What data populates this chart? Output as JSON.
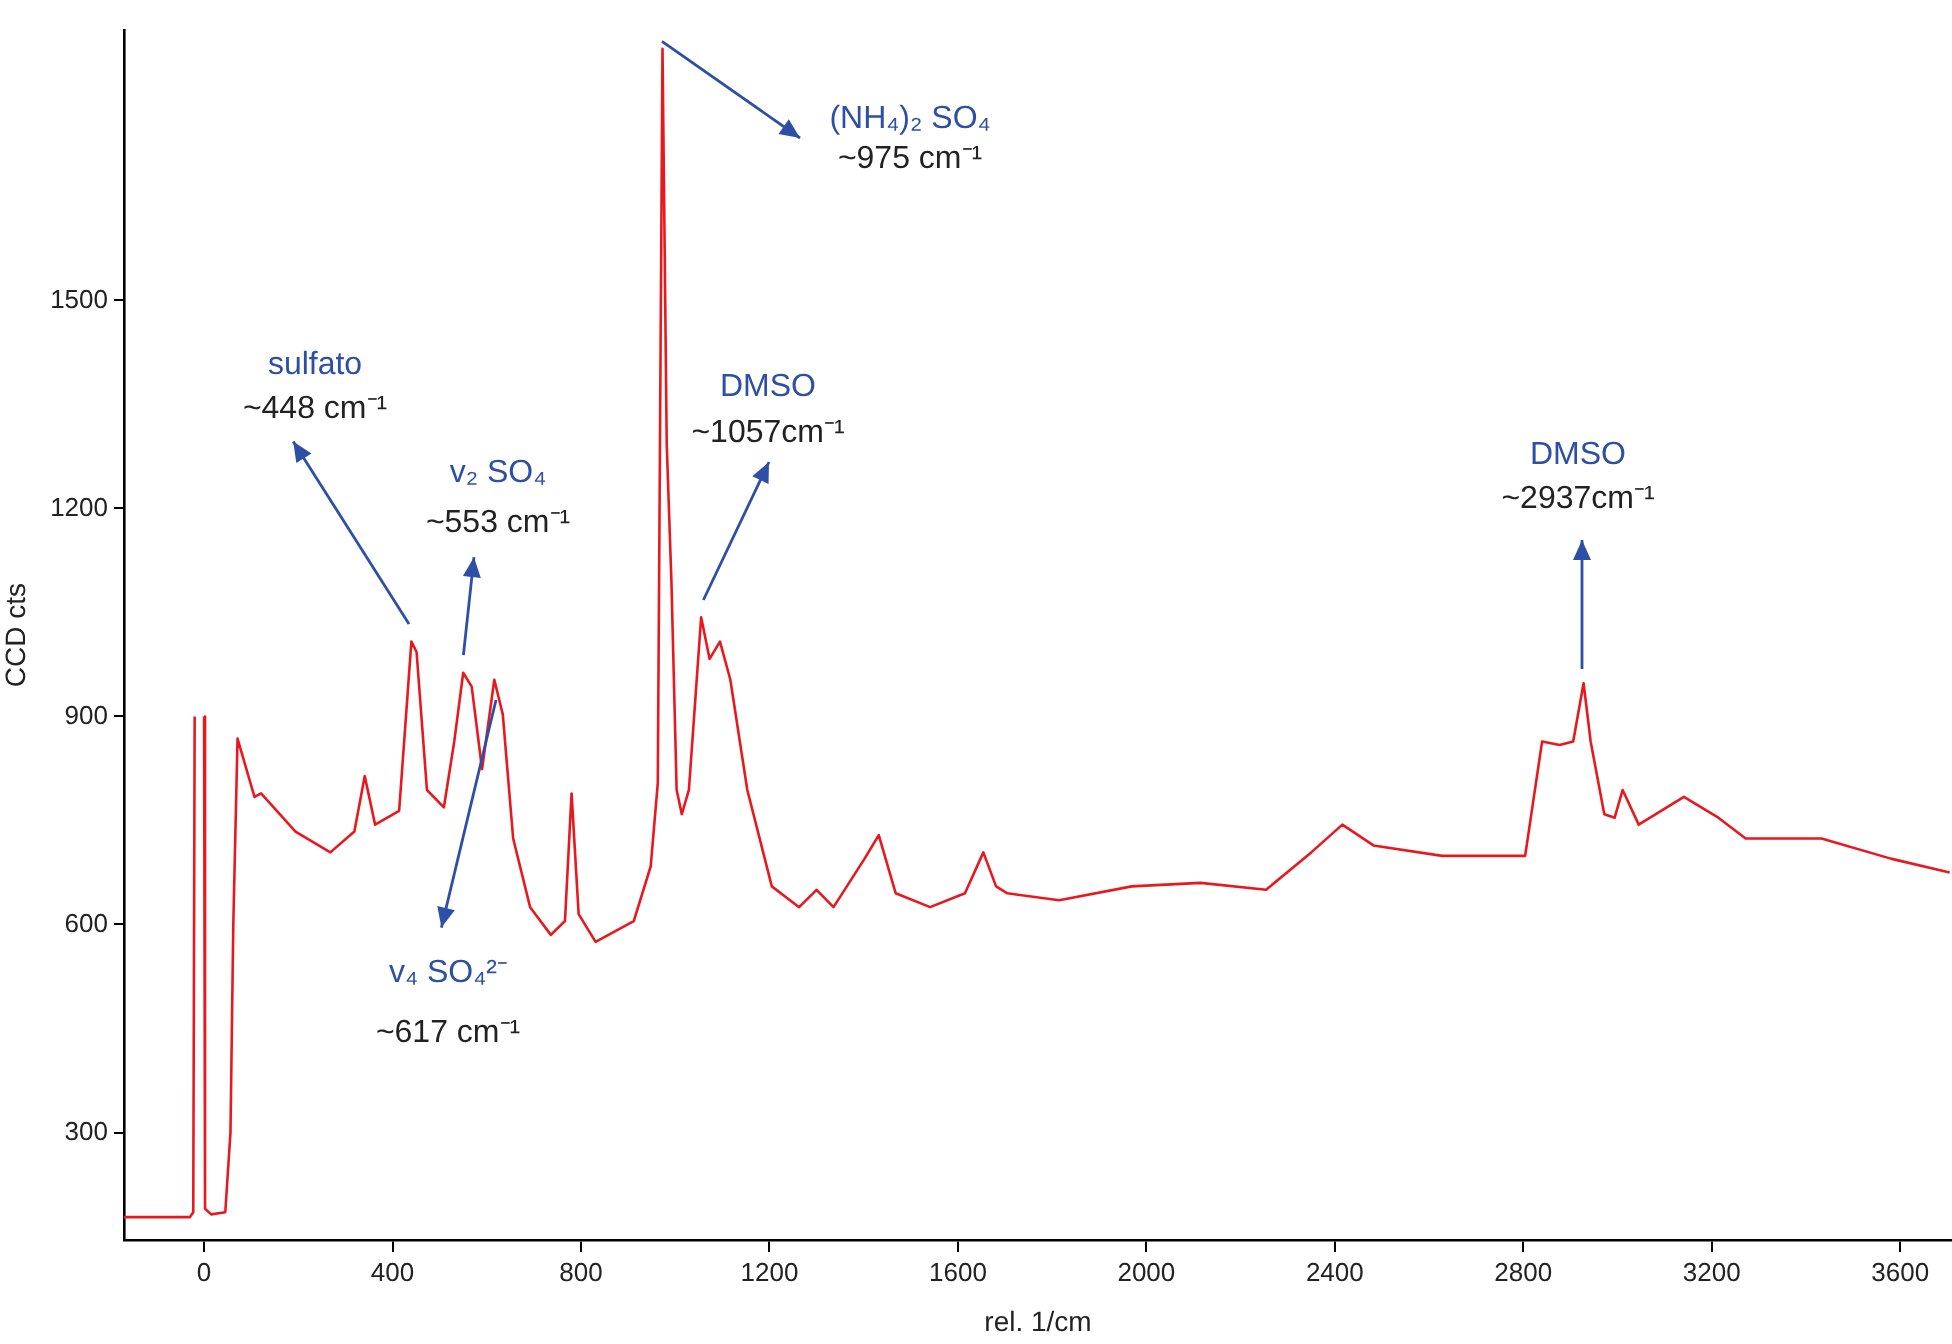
{
  "chart_data": {
    "type": "line",
    "xlabel": "rel. 1/cm",
    "ylabel": "CCD cts",
    "xlim": [
      -170,
      3710
    ],
    "ylim": [
      145,
      1890
    ],
    "xticks": [
      0,
      400,
      800,
      1200,
      1600,
      2000,
      2400,
      2800,
      3200,
      3600
    ],
    "yticks": [
      300,
      600,
      900,
      1200,
      1500
    ],
    "grid": false,
    "legend": false,
    "marker": "none",
    "series": [
      {
        "color": "#e8191e",
        "x": [
          -170,
          -30,
          -23,
          -20,
          -18,
          -3,
          0,
          2,
          15,
          45,
          56,
          62,
          71,
          107,
          121,
          194,
          268,
          319,
          341,
          363,
          414,
          440,
          451,
          473,
          509,
          531,
          550,
          568,
          590,
          616,
          634,
          656,
          692,
          736,
          766,
          780,
          795,
          831,
          912,
          948,
          963,
          973,
          982,
          992,
          1003,
          1014,
          1029,
          1055,
          1073,
          1095,
          1117,
          1153,
          1205,
          1263,
          1300,
          1336,
          1402,
          1432,
          1468,
          1541,
          1615,
          1654,
          1681,
          1705,
          1815,
          1969,
          2115,
          2254,
          2350,
          2416,
          2482,
          2628,
          2804,
          2840,
          2877,
          2906,
          2928,
          2943,
          2972,
          2994,
          3011,
          3045,
          3141,
          3214,
          3272,
          3433,
          3580,
          3705
        ],
        "values": [
          178,
          178,
          185,
          900,
          null,
          null,
          900,
          190,
          182,
          185,
          300,
          600,
          868,
          784,
          789,
          734,
          704,
          734,
          814,
          744,
          764,
          1008,
          993,
          794,
          769,
          864,
          963,
          943,
          824,
          953,
          903,
          724,
          625,
          585,
          605,
          789,
          615,
          575,
          605,
          684,
          804,
          1863,
          1292,
          1093,
          794,
          759,
          794,
          1043,
          983,
          1008,
          953,
          794,
          655,
          625,
          650,
          625,
          695,
          729,
          645,
          625,
          645,
          704,
          655,
          645,
          635,
          655,
          660,
          650,
          704,
          744,
          714,
          699,
          699,
          864,
          859,
          864,
          948,
          864,
          759,
          754,
          794,
          744,
          784,
          754,
          724,
          724,
          695,
          675
        ]
      }
    ],
    "annotations": [
      "sulfato\n~448 cm⁻¹",
      "v₂ SO₄\n~553 cm⁻¹",
      "v₄ SO₄²⁻\n~617 cm⁻¹",
      "(NH₄)₂ SO₄\n~975 cm⁻¹",
      "DMSO\n~1057cm⁻¹",
      "DMSO\n~2937cm⁻¹"
    ]
  }
}
